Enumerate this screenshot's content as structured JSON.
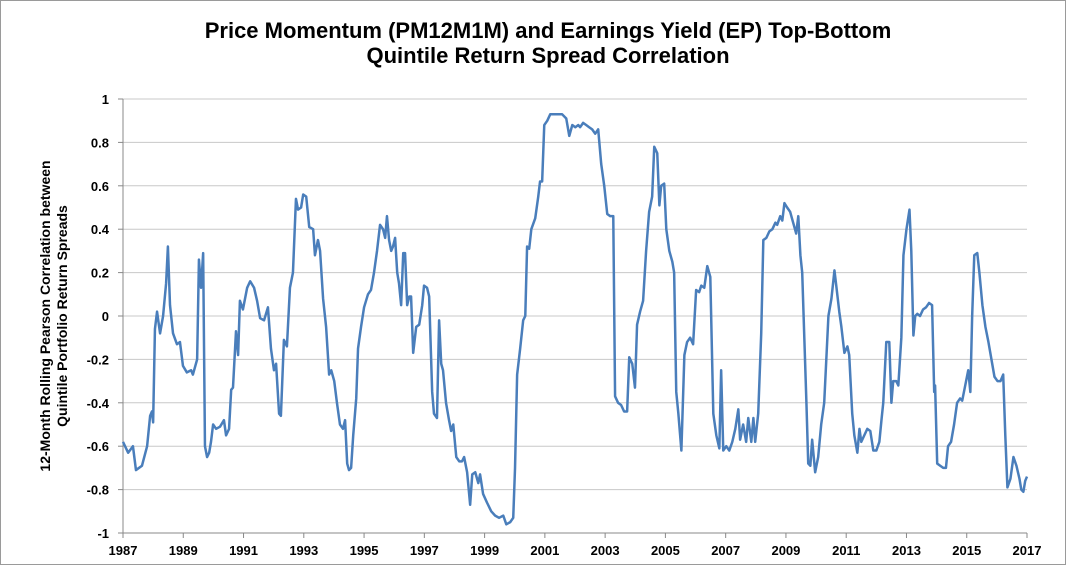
{
  "chart_data": {
    "type": "line",
    "title": [
      "Price Momentum (PM12M1M) and Earnings Yield (EP) Top-Bottom",
      "Quintile Return Spread Correlation"
    ],
    "y_label": [
      "12-Month Rolling Pearson Correlation between",
      "Quintile Portfolio Return Spreads"
    ],
    "color": "#4a7ebb",
    "grid": true,
    "xlim": [
      1987,
      2017
    ],
    "xticks": [
      1987,
      1989,
      1991,
      1993,
      1995,
      1997,
      1999,
      2001,
      2003,
      2005,
      2007,
      2009,
      2011,
      2013,
      2015,
      2017
    ],
    "ylim": [
      -1,
      1
    ],
    "yticks": [
      -1,
      -0.8,
      -0.6,
      -0.4,
      -0.2,
      0,
      0.2,
      0.4,
      0.6,
      0.8,
      1
    ],
    "x": [
      1987.0,
      1987.17,
      1987.33,
      1987.43,
      1987.63,
      1987.8,
      1987.9,
      1987.96,
      1988.0,
      1988.06,
      1988.13,
      1988.23,
      1988.33,
      1988.43,
      1988.49,
      1988.56,
      1988.66,
      1988.79,
      1988.89,
      1988.99,
      1989.12,
      1989.26,
      1989.32,
      1989.46,
      1989.52,
      1989.59,
      1989.66,
      1989.72,
      1989.79,
      1989.86,
      1989.92,
      1989.99,
      1990.09,
      1990.22,
      1990.35,
      1990.42,
      1990.52,
      1990.59,
      1990.65,
      1990.75,
      1990.82,
      1990.88,
      1990.98,
      1991.12,
      1991.22,
      1991.35,
      1991.45,
      1991.55,
      1991.68,
      1991.81,
      1991.91,
      1992.01,
      1992.08,
      1992.18,
      1992.24,
      1992.34,
      1992.44,
      1992.54,
      1992.64,
      1992.74,
      1992.81,
      1992.91,
      1992.98,
      1993.08,
      1993.18,
      1993.31,
      1993.37,
      1993.47,
      1993.54,
      1993.64,
      1993.74,
      1993.84,
      1993.91,
      1994.01,
      1994.1,
      1994.2,
      1994.3,
      1994.37,
      1994.44,
      1994.5,
      1994.57,
      1994.64,
      1994.74,
      1994.8,
      1994.9,
      1995.0,
      1995.13,
      1995.23,
      1995.33,
      1995.43,
      1995.53,
      1995.63,
      1995.7,
      1995.76,
      1995.83,
      1995.9,
      1995.96,
      1996.03,
      1996.1,
      1996.16,
      1996.23,
      1996.3,
      1996.36,
      1996.43,
      1996.5,
      1996.56,
      1996.63,
      1996.73,
      1996.83,
      1996.93,
      1996.99,
      1997.09,
      1997.16,
      1997.26,
      1997.32,
      1997.42,
      1997.49,
      1997.56,
      1997.62,
      1997.72,
      1997.82,
      1997.89,
      1997.96,
      1998.06,
      1998.16,
      1998.25,
      1998.32,
      1998.42,
      1998.52,
      1998.59,
      1998.69,
      1998.79,
      1998.85,
      1998.95,
      1999.08,
      1999.22,
      1999.35,
      1999.48,
      1999.62,
      1999.72,
      1999.85,
      1999.95,
      2000.01,
      2000.08,
      2000.18,
      2000.28,
      2000.35,
      2000.41,
      2000.48,
      2000.55,
      2000.68,
      2000.78,
      2000.84,
      2000.91,
      2000.98,
      2001.08,
      2001.18,
      2001.31,
      2001.44,
      2001.57,
      2001.71,
      2001.81,
      2001.91,
      2002.01,
      2002.11,
      2002.17,
      2002.27,
      2002.37,
      2002.47,
      2002.57,
      2002.67,
      2002.77,
      2002.87,
      2002.97,
      2003.07,
      2003.17,
      2003.27,
      2003.33,
      2003.43,
      2003.53,
      2003.63,
      2003.73,
      2003.8,
      2003.9,
      2003.99,
      2004.06,
      2004.16,
      2004.26,
      2004.36,
      2004.46,
      2004.56,
      2004.63,
      2004.73,
      2004.8,
      2004.86,
      2004.96,
      2005.03,
      2005.13,
      2005.23,
      2005.29,
      2005.36,
      2005.43,
      2005.53,
      2005.63,
      2005.72,
      2005.82,
      2005.92,
      2006.02,
      2006.12,
      2006.19,
      2006.29,
      2006.39,
      2006.49,
      2006.59,
      2006.69,
      2006.79,
      2006.85,
      2006.92,
      2007.02,
      2007.12,
      2007.22,
      2007.32,
      2007.42,
      2007.48,
      2007.58,
      2007.68,
      2007.75,
      2007.85,
      2007.92,
      2007.98,
      2008.08,
      2008.18,
      2008.25,
      2008.35,
      2008.45,
      2008.55,
      2008.65,
      2008.71,
      2008.81,
      2008.88,
      2008.95,
      2009.04,
      2009.14,
      2009.24,
      2009.34,
      2009.41,
      2009.48,
      2009.54,
      2009.61,
      2009.68,
      2009.74,
      2009.81,
      2009.87,
      2009.97,
      2010.07,
      2010.17,
      2010.27,
      2010.34,
      2010.41,
      2010.51,
      2010.61,
      2010.67,
      2010.77,
      2010.84,
      2010.94,
      2011.04,
      2011.1,
      2011.2,
      2011.27,
      2011.37,
      2011.44,
      2011.5,
      2011.6,
      2011.7,
      2011.8,
      2011.9,
      2012.0,
      2012.1,
      2012.17,
      2012.23,
      2012.33,
      2012.43,
      2012.5,
      2012.56,
      2012.66,
      2012.73,
      2012.83,
      2012.9,
      2013.0,
      2013.1,
      2013.16,
      2013.23,
      2013.29,
      2013.36,
      2013.45,
      2013.55,
      2013.65,
      2013.75,
      2013.85,
      2013.92,
      2013.95,
      2014.02,
      2014.12,
      2014.22,
      2014.31,
      2014.38,
      2014.48,
      2014.58,
      2014.68,
      2014.78,
      2014.85,
      2014.95,
      2015.05,
      2015.12,
      2015.18,
      2015.25,
      2015.35,
      2015.42,
      2015.52,
      2015.62,
      2015.72,
      2015.82,
      2015.92,
      2016.02,
      2016.12,
      2016.21,
      2016.28,
      2016.35,
      2016.45,
      2016.55,
      2016.65,
      2016.75,
      2016.81,
      2016.88,
      2016.94,
      2017.0
    ],
    "values": [
      -0.58,
      -0.63,
      -0.6,
      -0.71,
      -0.69,
      -0.6,
      -0.46,
      -0.44,
      -0.49,
      -0.06,
      0.02,
      -0.08,
      0.0,
      0.15,
      0.32,
      0.05,
      -0.08,
      -0.13,
      -0.12,
      -0.23,
      -0.26,
      -0.25,
      -0.27,
      -0.2,
      0.26,
      0.13,
      0.29,
      -0.6,
      -0.65,
      -0.63,
      -0.58,
      -0.5,
      -0.52,
      -0.51,
      -0.48,
      -0.55,
      -0.52,
      -0.34,
      -0.33,
      -0.07,
      -0.18,
      0.07,
      0.03,
      0.13,
      0.16,
      0.13,
      0.07,
      -0.01,
      -0.02,
      0.04,
      -0.15,
      -0.25,
      -0.22,
      -0.45,
      -0.46,
      -0.11,
      -0.14,
      0.13,
      0.2,
      0.54,
      0.49,
      0.5,
      0.56,
      0.55,
      0.41,
      0.4,
      0.28,
      0.35,
      0.3,
      0.08,
      -0.05,
      -0.27,
      -0.25,
      -0.3,
      -0.4,
      -0.5,
      -0.52,
      -0.48,
      -0.68,
      -0.71,
      -0.7,
      -0.55,
      -0.38,
      -0.15,
      -0.05,
      0.04,
      0.1,
      0.12,
      0.2,
      0.3,
      0.42,
      0.4,
      0.36,
      0.46,
      0.35,
      0.3,
      0.32,
      0.36,
      0.2,
      0.15,
      0.05,
      0.29,
      0.29,
      0.05,
      0.09,
      0.09,
      -0.17,
      -0.05,
      -0.04,
      0.05,
      0.14,
      0.13,
      0.09,
      -0.35,
      -0.45,
      -0.47,
      -0.02,
      -0.22,
      -0.25,
      -0.4,
      -0.48,
      -0.53,
      -0.5,
      -0.65,
      -0.67,
      -0.67,
      -0.65,
      -0.72,
      -0.87,
      -0.73,
      -0.72,
      -0.77,
      -0.73,
      -0.82,
      -0.86,
      -0.9,
      -0.92,
      -0.93,
      -0.92,
      -0.96,
      -0.95,
      -0.93,
      -0.7,
      -0.27,
      -0.15,
      -0.02,
      0.0,
      0.32,
      0.31,
      0.4,
      0.45,
      0.55,
      0.62,
      0.62,
      0.88,
      0.9,
      0.93,
      0.93,
      0.93,
      0.93,
      0.91,
      0.83,
      0.88,
      0.87,
      0.88,
      0.87,
      0.89,
      0.88,
      0.87,
      0.86,
      0.84,
      0.86,
      0.7,
      0.6,
      0.47,
      0.46,
      0.46,
      -0.37,
      -0.4,
      -0.41,
      -0.44,
      -0.44,
      -0.19,
      -0.22,
      -0.33,
      -0.04,
      0.02,
      0.07,
      0.3,
      0.48,
      0.55,
      0.78,
      0.75,
      0.51,
      0.6,
      0.61,
      0.4,
      0.3,
      0.25,
      0.2,
      -0.35,
      -0.45,
      -0.62,
      -0.18,
      -0.12,
      -0.1,
      -0.13,
      0.12,
      0.11,
      0.14,
      0.13,
      0.23,
      0.18,
      -0.45,
      -0.55,
      -0.61,
      -0.25,
      -0.62,
      -0.6,
      -0.62,
      -0.58,
      -0.52,
      -0.43,
      -0.57,
      -0.5,
      -0.58,
      -0.47,
      -0.58,
      -0.47,
      -0.58,
      -0.45,
      -0.08,
      0.35,
      0.36,
      0.39,
      0.4,
      0.43,
      0.42,
      0.46,
      0.44,
      0.52,
      0.5,
      0.48,
      0.43,
      0.38,
      0.46,
      0.28,
      0.2,
      -0.1,
      -0.4,
      -0.68,
      -0.69,
      -0.57,
      -0.72,
      -0.65,
      -0.5,
      -0.4,
      -0.2,
      0.0,
      0.08,
      0.21,
      0.14,
      0.02,
      -0.05,
      -0.17,
      -0.14,
      -0.18,
      -0.45,
      -0.55,
      -0.63,
      -0.52,
      -0.58,
      -0.55,
      -0.52,
      -0.53,
      -0.62,
      -0.62,
      -0.58,
      -0.48,
      -0.4,
      -0.12,
      -0.12,
      -0.4,
      -0.3,
      -0.3,
      -0.32,
      -0.1,
      0.28,
      0.4,
      0.49,
      0.3,
      -0.09,
      0.0,
      0.01,
      0.0,
      0.03,
      0.04,
      0.06,
      0.05,
      -0.35,
      -0.32,
      -0.68,
      -0.69,
      -0.7,
      -0.7,
      -0.6,
      -0.58,
      -0.5,
      -0.4,
      -0.38,
      -0.39,
      -0.32,
      -0.25,
      -0.35,
      0.0,
      0.28,
      0.29,
      0.2,
      0.05,
      -0.05,
      -0.12,
      -0.2,
      -0.28,
      -0.3,
      -0.3,
      -0.27,
      -0.55,
      -0.79,
      -0.75,
      -0.65,
      -0.69,
      -0.75,
      -0.8,
      -0.81,
      -0.76,
      -0.74
    ]
  }
}
